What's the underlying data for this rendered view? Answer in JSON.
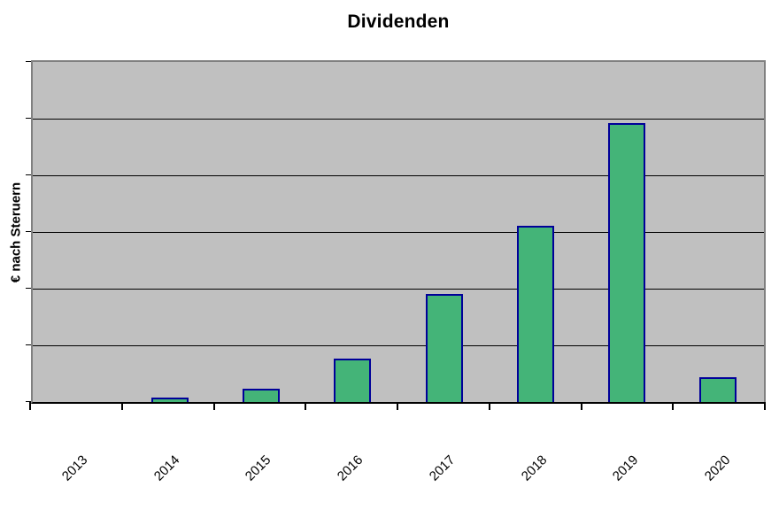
{
  "chart_data": {
    "type": "bar",
    "title": "Dividenden",
    "xlabel": "",
    "ylabel": "€ nach Steruern",
    "categories": [
      "2013",
      "2014",
      "2015",
      "2016",
      "2017",
      "2018",
      "2019",
      "2020"
    ],
    "series": [
      {
        "name": "Dividenden",
        "values": [
          0,
          0.08,
          0.24,
          0.76,
          1.91,
          3.11,
          4.92,
          0.43
        ]
      }
    ],
    "value_note": "y-axis shows no numeric tick labels; values estimated in gridline units (plot divided by horizontal gridlines into 6 equal intervals, 0 = x-axis, 6 = plot top)",
    "ylim": [
      0,
      6
    ],
    "y_axis": {
      "tick_labels_visible": false,
      "gridline_divisions": 6
    },
    "grid": "horizontal-black-lines",
    "legend_position": "none",
    "x_tick_rotation_deg": 45,
    "colors": {
      "plot_background": "#C0C0C0",
      "plot_border": "#808080",
      "gridline": "#000000",
      "axis_line": "#000000",
      "bar_fill": "#44B478",
      "bar_border": "#000099",
      "text": "#000000",
      "page_background": "#FFFFFF"
    }
  }
}
